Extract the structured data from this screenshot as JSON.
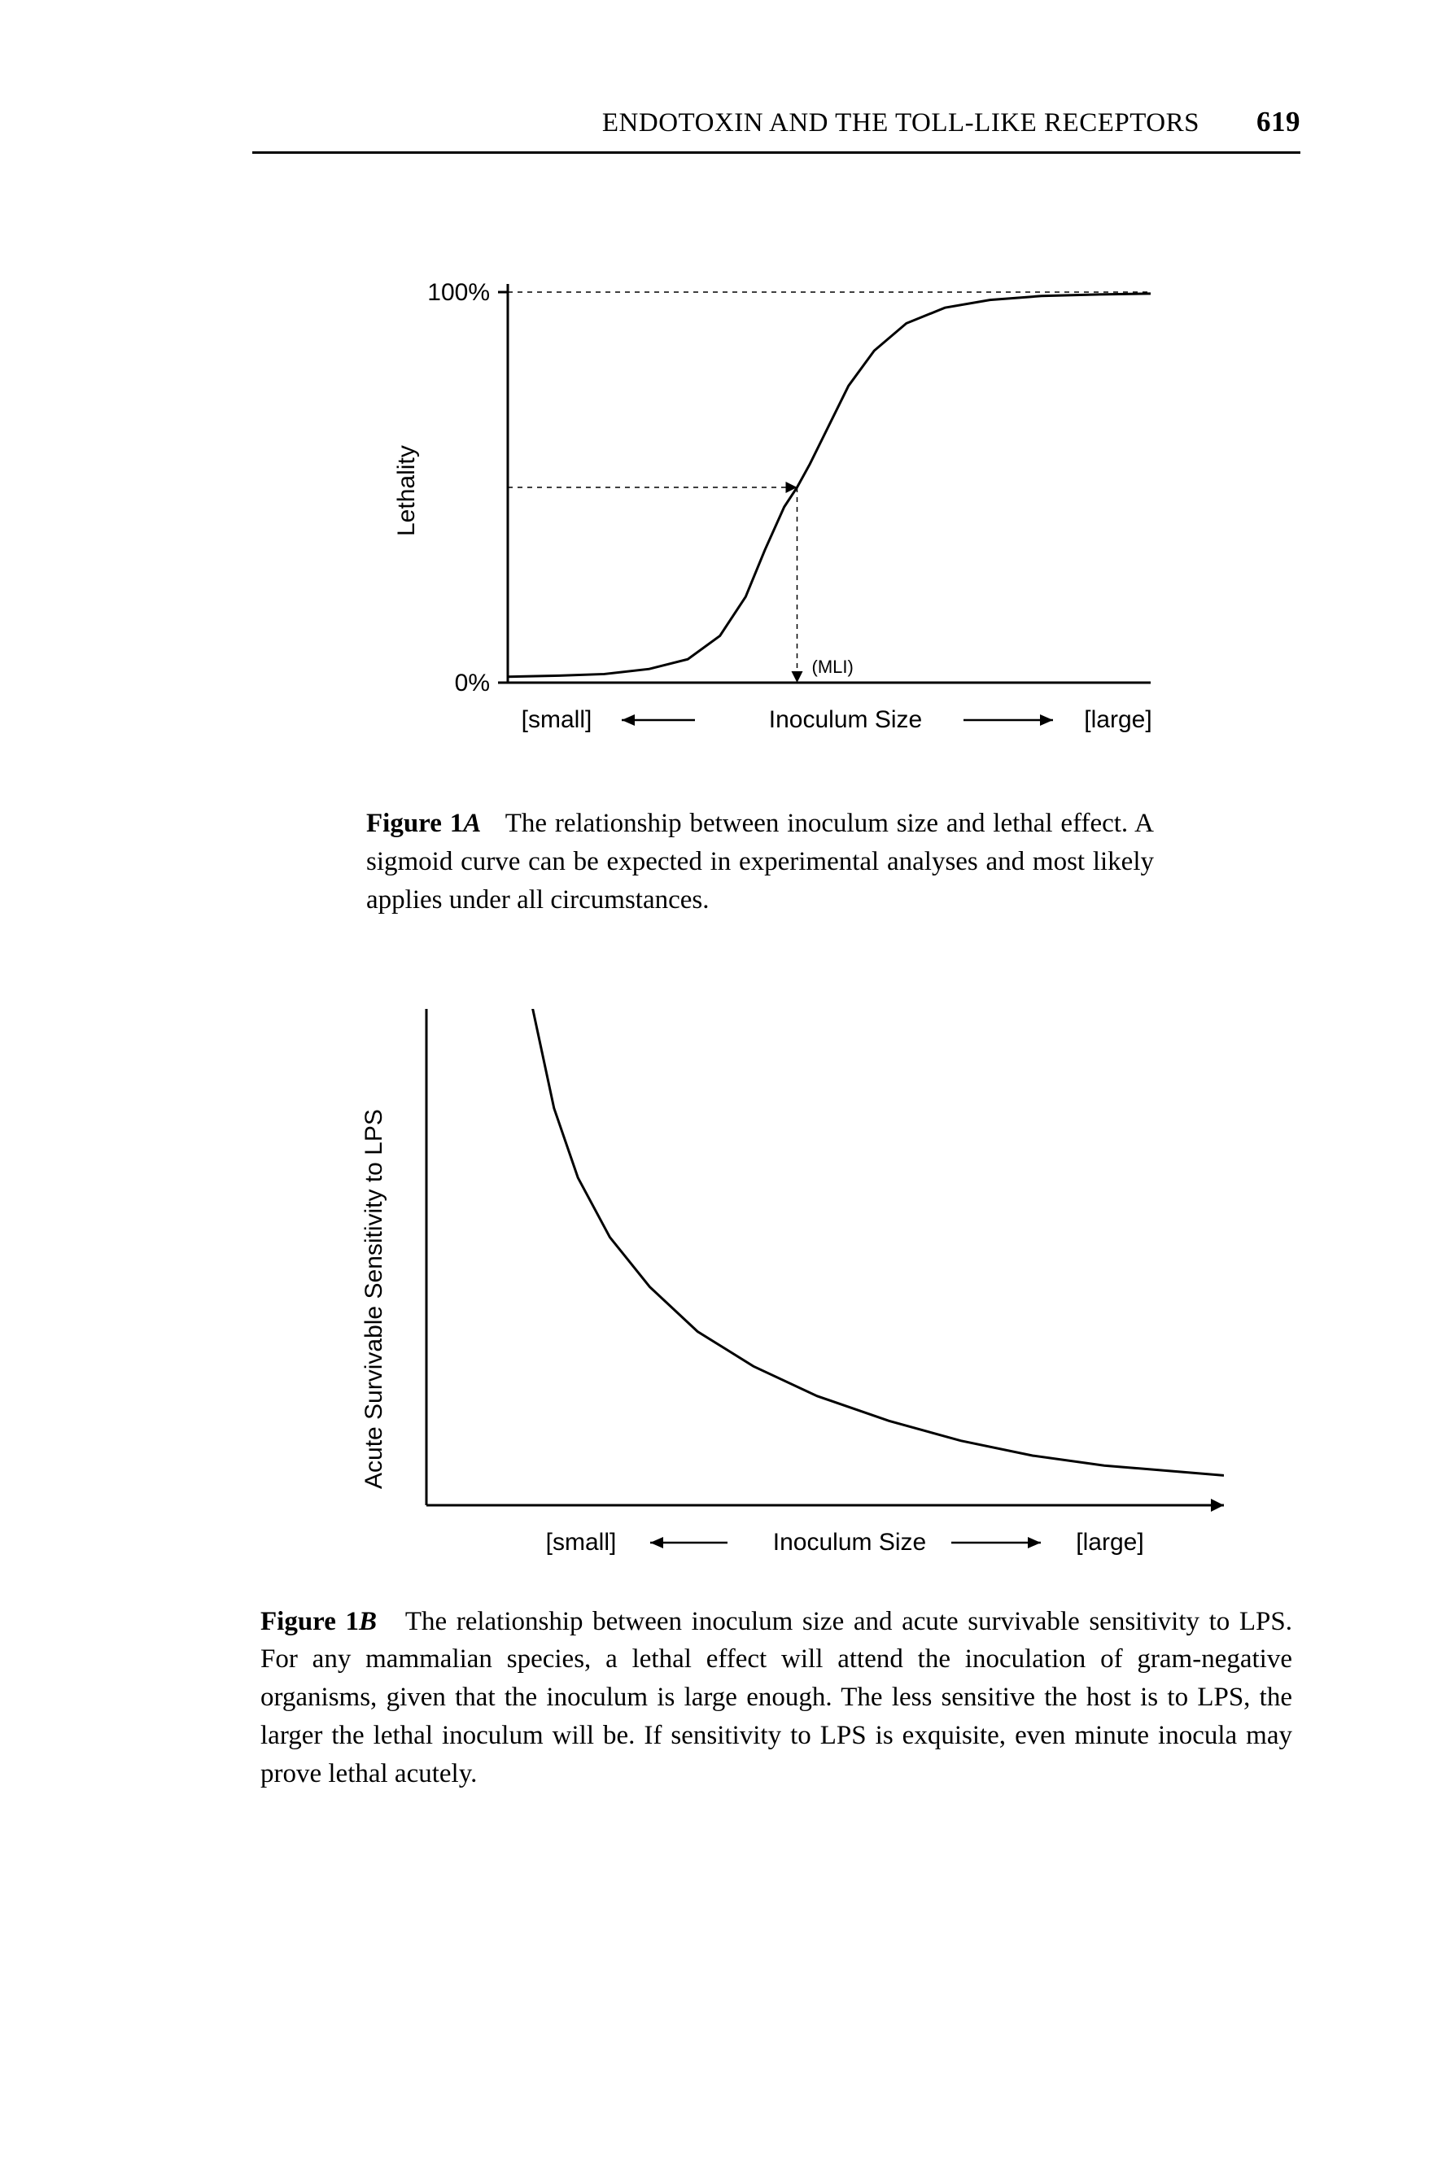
{
  "header": {
    "running_title": "ENDOTOXIN AND THE TOLL-LIKE RECEPTORS",
    "page_number": "619"
  },
  "figure1A": {
    "label_prefix": "Figure 1",
    "label_letter": "A",
    "caption_text": "The relationship between inoculum size and lethal effect. A sigmoid curve can be expected in experimental analyses and most likely applies under all circumstances.",
    "chart": {
      "type": "line",
      "y_axis_label": "Lethality",
      "y_tick_top": "100%",
      "y_tick_bottom": "0%",
      "x_axis_label_center": "Inoculum Size",
      "x_axis_label_left": "[small]",
      "x_axis_label_right": "[large]",
      "marker_label": "(MLI)",
      "line_color": "#000000",
      "line_width": 3,
      "axis_color": "#000000",
      "axis_width": 3,
      "dashed_color": "#000000",
      "background_color": "#ffffff",
      "label_fontsize": 30,
      "tick_fontsize": 30,
      "marker_fontsize": 22,
      "xlim": [
        0,
        100
      ],
      "ylim": [
        0,
        100
      ],
      "asymptote_y": 100,
      "midpoint_x": 45,
      "midpoint_y": 50,
      "curve_points": [
        [
          0,
          1.5
        ],
        [
          8,
          1.8
        ],
        [
          15,
          2.2
        ],
        [
          22,
          3.5
        ],
        [
          28,
          6
        ],
        [
          33,
          12
        ],
        [
          37,
          22
        ],
        [
          40,
          34
        ],
        [
          43,
          45
        ],
        [
          45,
          50
        ],
        [
          47,
          56
        ],
        [
          50,
          66
        ],
        [
          53,
          76
        ],
        [
          57,
          85
        ],
        [
          62,
          92
        ],
        [
          68,
          96
        ],
        [
          75,
          98
        ],
        [
          83,
          99
        ],
        [
          92,
          99.4
        ],
        [
          100,
          99.6
        ]
      ]
    }
  },
  "figure1B": {
    "label_prefix": "Figure 1",
    "label_letter": "B",
    "caption_text": "The relationship between inoculum size and acute survivable sensitivity to LPS. For any mammalian species, a lethal effect will attend the inoculation of gram-negative organisms, given that the inoculum is large enough. The less sensitive the host is to LPS, the larger the lethal inoculum will be. If sensitivity to LPS is exquisite, even minute inocula may prove lethal acutely.",
    "chart": {
      "type": "line",
      "y_axis_label": "Acute Survivable Sensitivity to LPS",
      "x_axis_label_center": "Inoculum Size",
      "x_axis_label_left": "[small]",
      "x_axis_label_right": "[large]",
      "line_color": "#000000",
      "line_width": 3,
      "axis_color": "#000000",
      "axis_width": 3,
      "background_color": "#ffffff",
      "label_fontsize": 30,
      "xlim": [
        0,
        100
      ],
      "ylim": [
        0,
        100
      ],
      "curve_points": [
        [
          12,
          110
        ],
        [
          14,
          95
        ],
        [
          16,
          80
        ],
        [
          19,
          66
        ],
        [
          23,
          54
        ],
        [
          28,
          44
        ],
        [
          34,
          35
        ],
        [
          41,
          28
        ],
        [
          49,
          22
        ],
        [
          58,
          17
        ],
        [
          67,
          13
        ],
        [
          76,
          10
        ],
        [
          85,
          8
        ],
        [
          94,
          6.8
        ],
        [
          100,
          6
        ]
      ]
    }
  }
}
